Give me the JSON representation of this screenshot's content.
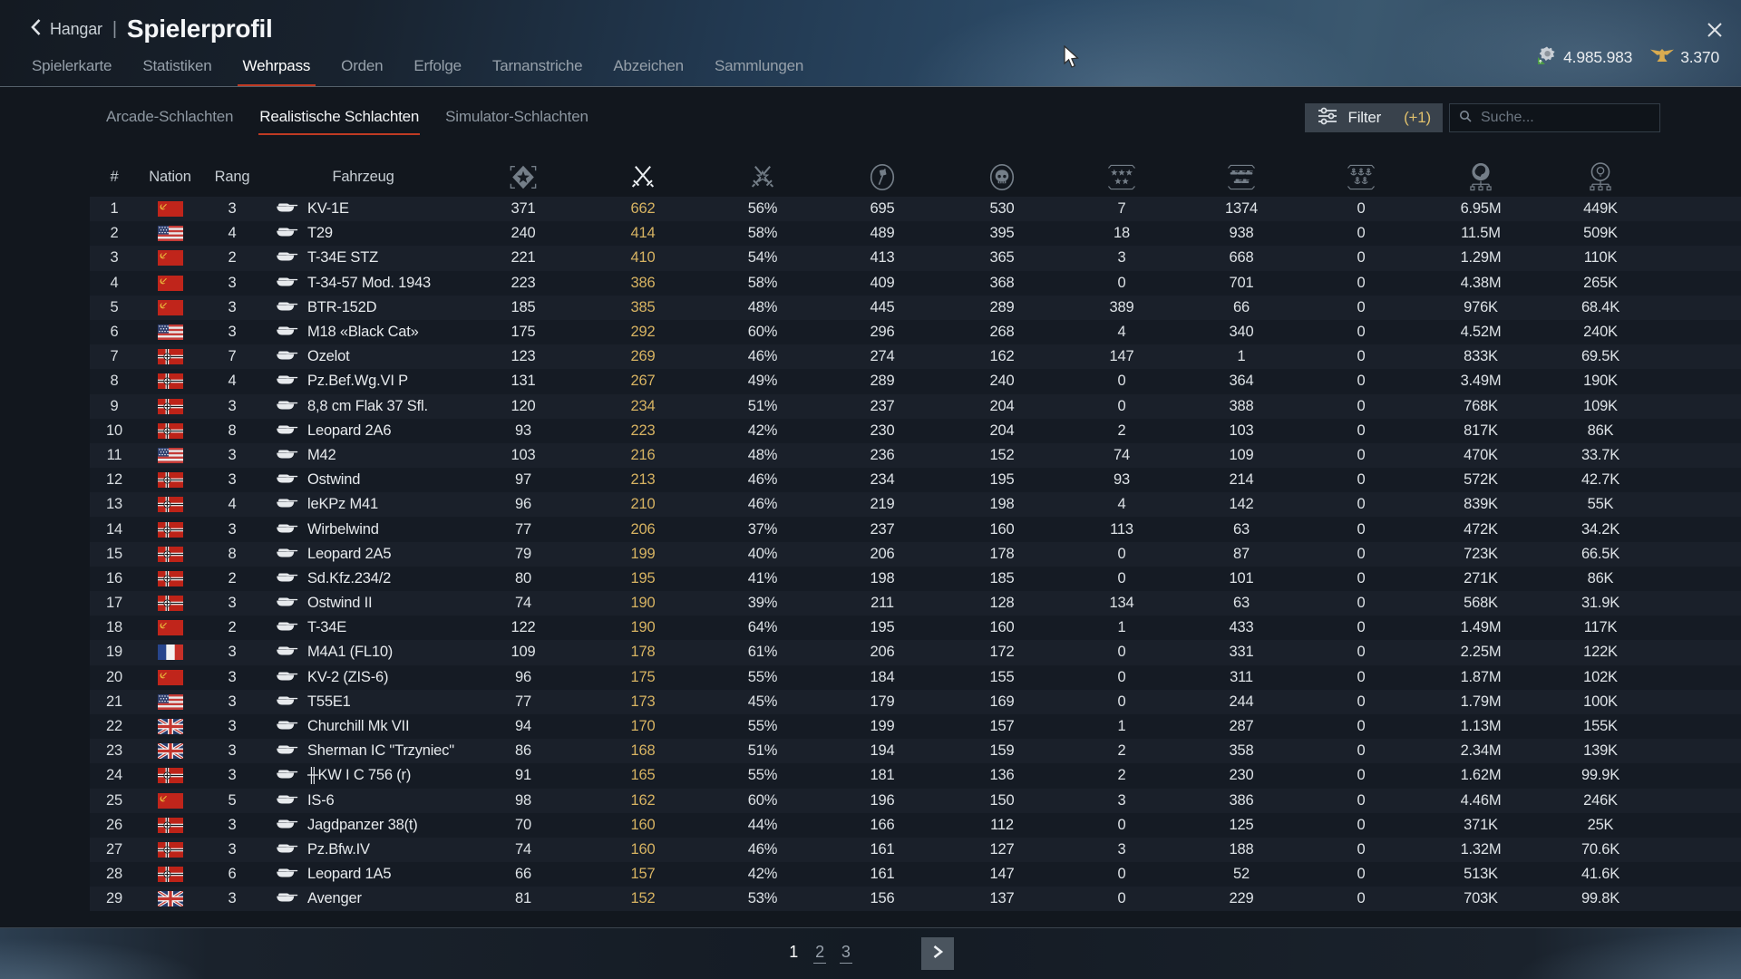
{
  "header": {
    "back_label": "Hangar",
    "title": "Spielerprofil",
    "tabs": [
      {
        "label": "Spielerkarte",
        "active": false
      },
      {
        "label": "Statistiken",
        "active": false
      },
      {
        "label": "Wehrpass",
        "active": true
      },
      {
        "label": "Orden",
        "active": false
      },
      {
        "label": "Erfolge",
        "active": false
      },
      {
        "label": "Tarnanstriche",
        "active": false
      },
      {
        "label": "Abzeichen",
        "active": false
      },
      {
        "label": "Sammlungen",
        "active": false
      }
    ],
    "currency": {
      "silver_lions": "4.985.983",
      "golden_eagles": "3.370"
    }
  },
  "toolbar": {
    "mode_tabs": [
      {
        "label": "Arcade-Schlachten",
        "active": false
      },
      {
        "label": "Realistische Schlachten",
        "active": true
      },
      {
        "label": "Simulator-Schlachten",
        "active": false
      }
    ],
    "filter_label": "Filter",
    "filter_badge": "(+1)",
    "search_placeholder": "Suche..."
  },
  "table": {
    "text_headers": [
      "#",
      "Nation",
      "Rang",
      "Fahrzeug"
    ],
    "icon_headers": [
      {
        "name": "battles-icon",
        "active": false
      },
      {
        "name": "kills-icon",
        "active": true
      },
      {
        "name": "winrate-icon",
        "active": false
      },
      {
        "name": "sessions-flag-icon",
        "active": false
      },
      {
        "name": "deaths-skull-icon",
        "active": false
      },
      {
        "name": "air-targets-destroyed-icon",
        "active": false
      },
      {
        "name": "ground-targets-destroyed-icon",
        "active": false
      },
      {
        "name": "naval-targets-destroyed-icon",
        "active": false
      },
      {
        "name": "silver-lions-earned-icon",
        "active": false
      },
      {
        "name": "research-points-earned-icon",
        "active": false
      }
    ],
    "rows": [
      [
        "1",
        "ussr",
        "3",
        "KV-1E",
        "371",
        "662",
        "56%",
        "695",
        "530",
        "7",
        "1374",
        "0",
        "6.95M",
        "449K"
      ],
      [
        "2",
        "usa",
        "4",
        "T29",
        "240",
        "414",
        "58%",
        "489",
        "395",
        "18",
        "938",
        "0",
        "11.5M",
        "509K"
      ],
      [
        "3",
        "ussr",
        "2",
        "T-34E STZ",
        "221",
        "410",
        "54%",
        "413",
        "365",
        "3",
        "668",
        "0",
        "1.29M",
        "110K"
      ],
      [
        "4",
        "ussr",
        "3",
        "T-34-57 Mod. 1943",
        "223",
        "386",
        "58%",
        "409",
        "368",
        "0",
        "701",
        "0",
        "4.38M",
        "265K"
      ],
      [
        "5",
        "ussr",
        "3",
        "BTR-152D",
        "185",
        "385",
        "48%",
        "445",
        "289",
        "389",
        "66",
        "0",
        "976K",
        "68.4K"
      ],
      [
        "6",
        "usa",
        "3",
        "M18 «Black Cat»",
        "175",
        "292",
        "60%",
        "296",
        "268",
        "4",
        "340",
        "0",
        "4.52M",
        "240K"
      ],
      [
        "7",
        "germany",
        "7",
        "Ozelot",
        "123",
        "269",
        "46%",
        "274",
        "162",
        "147",
        "1",
        "0",
        "833K",
        "69.5K"
      ],
      [
        "8",
        "germany",
        "4",
        "Pz.Bef.Wg.VI P",
        "131",
        "267",
        "49%",
        "289",
        "240",
        "0",
        "364",
        "0",
        "3.49M",
        "190K"
      ],
      [
        "9",
        "germany",
        "3",
        "8,8 cm Flak 37 Sfl.",
        "120",
        "234",
        "51%",
        "237",
        "204",
        "0",
        "388",
        "0",
        "768K",
        "109K"
      ],
      [
        "10",
        "germany",
        "8",
        "Leopard 2A6",
        "93",
        "223",
        "42%",
        "230",
        "204",
        "2",
        "103",
        "0",
        "817K",
        "86K"
      ],
      [
        "11",
        "usa",
        "3",
        "M42",
        "103",
        "216",
        "48%",
        "236",
        "152",
        "74",
        "109",
        "0",
        "470K",
        "33.7K"
      ],
      [
        "12",
        "germany",
        "3",
        "Ostwind",
        "97",
        "213",
        "46%",
        "234",
        "195",
        "93",
        "214",
        "0",
        "572K",
        "42.7K"
      ],
      [
        "13",
        "germany",
        "4",
        "leKPz M41",
        "96",
        "210",
        "46%",
        "219",
        "198",
        "4",
        "142",
        "0",
        "839K",
        "55K"
      ],
      [
        "14",
        "germany",
        "3",
        "Wirbelwind",
        "77",
        "206",
        "37%",
        "237",
        "160",
        "113",
        "63",
        "0",
        "472K",
        "34.2K"
      ],
      [
        "15",
        "germany",
        "8",
        "Leopard 2A5",
        "79",
        "199",
        "40%",
        "206",
        "178",
        "0",
        "87",
        "0",
        "723K",
        "66.5K"
      ],
      [
        "16",
        "germany",
        "2",
        "Sd.Kfz.234/2",
        "80",
        "195",
        "41%",
        "198",
        "185",
        "0",
        "101",
        "0",
        "271K",
        "86K"
      ],
      [
        "17",
        "germany",
        "3",
        "Ostwind II",
        "74",
        "190",
        "39%",
        "211",
        "128",
        "134",
        "63",
        "0",
        "568K",
        "31.9K"
      ],
      [
        "18",
        "ussr",
        "2",
        "T-34E",
        "122",
        "190",
        "64%",
        "195",
        "160",
        "1",
        "433",
        "0",
        "1.49M",
        "117K"
      ],
      [
        "19",
        "france",
        "3",
        "M4A1 (FL10)",
        "109",
        "178",
        "61%",
        "206",
        "172",
        "0",
        "331",
        "0",
        "2.25M",
        "122K"
      ],
      [
        "20",
        "ussr",
        "3",
        "KV-2 (ZIS-6)",
        "96",
        "175",
        "55%",
        "184",
        "155",
        "0",
        "311",
        "0",
        "1.87M",
        "102K"
      ],
      [
        "21",
        "usa",
        "3",
        "T55E1",
        "77",
        "173",
        "45%",
        "179",
        "169",
        "0",
        "244",
        "0",
        "1.79M",
        "100K"
      ],
      [
        "22",
        "uk",
        "3",
        "Churchill Mk VII",
        "94",
        "170",
        "55%",
        "199",
        "157",
        "1",
        "287",
        "0",
        "1.13M",
        "155K"
      ],
      [
        "23",
        "uk",
        "3",
        "Sherman IC \"Trzyniec\"",
        "86",
        "168",
        "51%",
        "194",
        "159",
        "2",
        "358",
        "0",
        "2.34M",
        "139K"
      ],
      [
        "24",
        "germany",
        "3",
        "╫KW I C 756 (r)",
        "91",
        "165",
        "55%",
        "181",
        "136",
        "2",
        "230",
        "0",
        "1.62M",
        "99.9K"
      ],
      [
        "25",
        "ussr",
        "5",
        "IS-6",
        "98",
        "162",
        "60%",
        "196",
        "150",
        "3",
        "386",
        "0",
        "4.46M",
        "246K"
      ],
      [
        "26",
        "germany",
        "3",
        "Jagdpanzer 38(t)",
        "70",
        "160",
        "44%",
        "166",
        "112",
        "0",
        "125",
        "0",
        "371K",
        "25K"
      ],
      [
        "27",
        "germany",
        "3",
        "Pz.Bfw.IV",
        "74",
        "160",
        "46%",
        "161",
        "127",
        "3",
        "188",
        "0",
        "1.32M",
        "70.6K"
      ],
      [
        "28",
        "germany",
        "6",
        "Leopard 1A5",
        "66",
        "157",
        "42%",
        "161",
        "147",
        "0",
        "52",
        "0",
        "513K",
        "41.6K"
      ],
      [
        "29",
        "uk",
        "3",
        "Avenger",
        "81",
        "152",
        "53%",
        "156",
        "137",
        "0",
        "229",
        "0",
        "703K",
        "99.8K"
      ]
    ]
  },
  "pagination": {
    "pages": [
      "1",
      "2",
      "3"
    ],
    "current": "1"
  },
  "colors": {
    "accent_red": "#bf3a23",
    "gold": "#d7b362",
    "panel": "#12171e",
    "icon_gray": "#747e88"
  }
}
